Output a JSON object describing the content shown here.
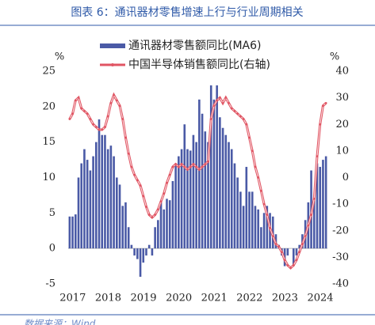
{
  "chart_data": {
    "type": "bar_line",
    "title": "图表 6：通讯器材零售增速上行与行业周期相关",
    "source": "数据来源：Wind",
    "y_label": "%",
    "y2_label": "%",
    "categories": [
      "2017",
      null,
      null,
      null,
      null,
      null,
      null,
      null,
      null,
      null,
      null,
      null,
      "2018",
      null,
      null,
      null,
      null,
      null,
      null,
      null,
      null,
      null,
      null,
      null,
      "2019",
      null,
      null,
      null,
      null,
      null,
      null,
      null,
      null,
      null,
      null,
      null,
      "2020",
      null,
      null,
      null,
      null,
      null,
      null,
      null,
      null,
      null,
      null,
      null,
      "2021",
      null,
      null,
      null,
      null,
      null,
      null,
      null,
      null,
      null,
      null,
      null,
      "2022",
      null,
      null,
      null,
      null,
      null,
      null,
      null,
      null,
      null,
      null,
      null,
      "2023",
      null,
      null,
      null,
      null,
      null,
      null,
      null,
      null,
      null,
      null,
      null,
      "2024",
      null,
      null,
      null
    ],
    "series": [
      {
        "name": "通讯器材零售额同比(MA6)",
        "color": "#4a5aa6",
        "kind": "bar",
        "values": [
          4.5,
          4.5,
          4.8,
          10,
          12,
          14,
          12.5,
          11,
          13,
          15,
          18.2,
          16,
          16,
          14,
          14.5,
          13,
          10,
          9,
          6,
          6.5,
          3,
          0.5,
          -1,
          -1.5,
          -4,
          -2,
          -1,
          0.5,
          -1,
          3,
          4,
          6.5,
          5.5,
          7,
          6.8,
          9.5,
          12,
          13,
          14,
          17.5,
          14,
          13.8,
          16,
          15,
          21,
          19,
          16.5,
          15,
          23,
          21,
          23,
          18.5,
          17,
          16,
          15,
          14,
          12,
          10,
          8,
          6,
          11.5,
          8,
          8,
          6,
          5.5,
          3,
          5,
          6,
          5,
          4.5,
          2,
          0.5,
          -1,
          -2.5,
          -1,
          0,
          -2.5,
          -1,
          0.5,
          2,
          4,
          6.5,
          11,
          7,
          12,
          11.5,
          12.5,
          13
        ]
      },
      {
        "name": "中国半导体销售额同比(右轴)",
        "color": "#e05563",
        "kind": "line",
        "axis": "y2",
        "values": [
          22,
          24,
          29,
          30,
          26,
          25,
          24,
          22,
          20,
          19,
          18,
          18,
          19,
          23,
          28,
          31,
          29,
          27,
          22,
          15,
          9,
          4,
          1,
          -1,
          -3,
          -7,
          -11,
          -14,
          -15,
          -14,
          -12,
          -9,
          -6,
          -2,
          1,
          4,
          5,
          4,
          5,
          4,
          3,
          4,
          5,
          4,
          3,
          4,
          5,
          6,
          22,
          27,
          29,
          30,
          28,
          30,
          28,
          26,
          25,
          24,
          23,
          22,
          20,
          15,
          10,
          4,
          0,
          -5,
          -10,
          -14,
          -19,
          -22,
          -25,
          -26,
          -28,
          -31,
          -33,
          -34,
          -33,
          -31,
          -28,
          -25,
          -22,
          -18,
          -14,
          -8,
          8,
          20,
          27,
          28
        ]
      }
    ],
    "ylim": [
      -5,
      25
    ],
    "yticks": [
      -5,
      0,
      5,
      10,
      15,
      20,
      25
    ],
    "y2lim": [
      -40,
      40
    ],
    "y2ticks": [
      -40,
      -30,
      -20,
      -10,
      0,
      10,
      20,
      30,
      40
    ]
  }
}
